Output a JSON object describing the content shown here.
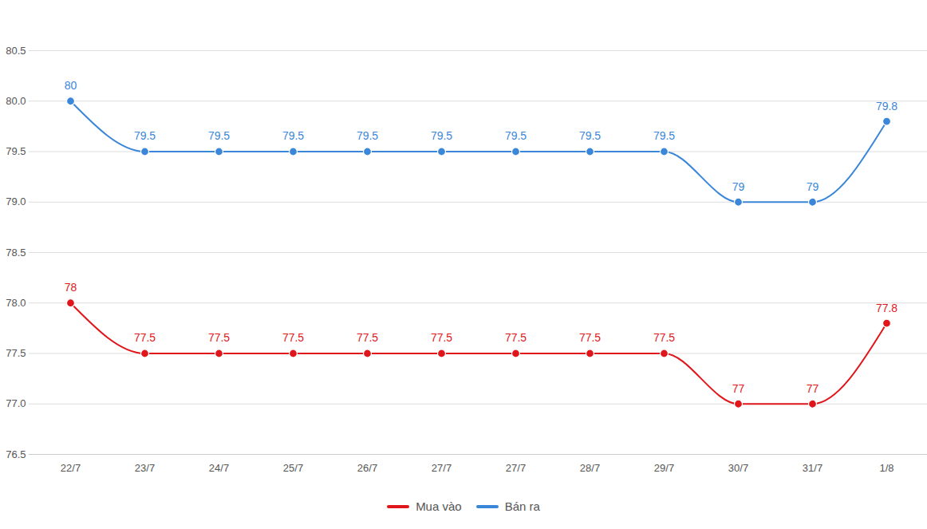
{
  "chart_data": {
    "type": "line",
    "categories": [
      "22/7",
      "23/7",
      "24/7",
      "25/7",
      "26/7",
      "27/7",
      "27/7",
      "28/7",
      "29/7",
      "30/7",
      "31/7",
      "1/8"
    ],
    "series": [
      {
        "name": "Mua vào",
        "color": "#e0161b",
        "marker": "circle",
        "values": [
          78,
          77.5,
          77.5,
          77.5,
          77.5,
          77.5,
          77.5,
          77.5,
          77.5,
          77,
          77,
          77.8
        ]
      },
      {
        "name": "Bán ra",
        "color": "#3a86d8",
        "marker": "circle",
        "values": [
          80,
          79.5,
          79.5,
          79.5,
          79.5,
          79.5,
          79.5,
          79.5,
          79.5,
          79,
          79,
          79.8
        ]
      }
    ],
    "ylim": [
      76.5,
      80.5
    ],
    "yticks": [
      76.5,
      {
        "value": 77,
        "label": "77.0"
      },
      77.5,
      {
        "value": 78,
        "label": "78.0"
      },
      78.5,
      {
        "value": 79,
        "label": "79.0"
      },
      79.5,
      {
        "value": 80,
        "label": "80.0"
      },
      80.5
    ],
    "grid": true,
    "data_labels": true,
    "legend": "bottom"
  }
}
